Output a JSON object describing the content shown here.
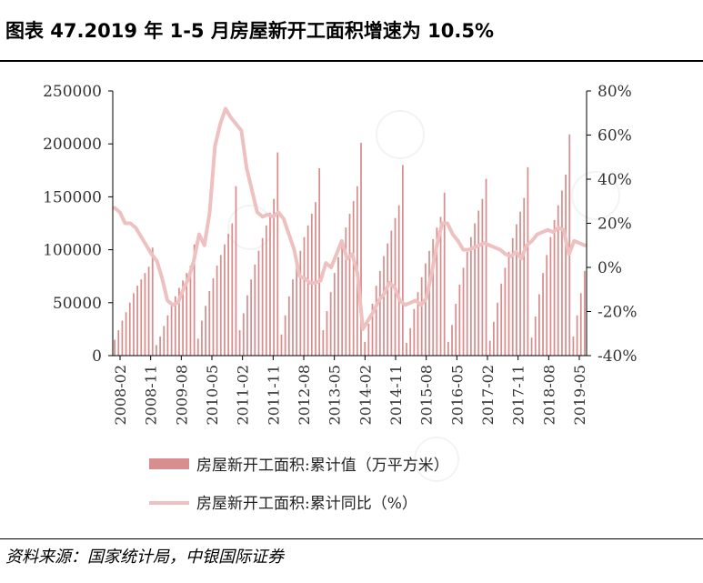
{
  "title": "图表 47.2019 年 1-5 月房屋新开工面积增速为 10.5%",
  "source": "资料来源：国家统计局，中银国际证券",
  "colors": {
    "bar": "#d88e8e",
    "line": "#eec0c0",
    "axis": "#000000"
  },
  "chart_data": {
    "type": "bar+line",
    "x_tick_labels": [
      "2008-02",
      "2008-11",
      "2009-08",
      "2010-05",
      "2011-02",
      "2011-11",
      "2012-08",
      "2013-05",
      "2014-02",
      "2014-11",
      "2015-08",
      "2016-05",
      "2017-02",
      "2017-11",
      "2018-08",
      "2019-05"
    ],
    "y_left_ticks": [
      "250000",
      "200000",
      "150000",
      "100000",
      "50000",
      "0"
    ],
    "y_right_ticks": [
      "80%",
      "60%",
      "40%",
      "20%",
      "0%",
      "-20%",
      "-40%"
    ],
    "ylim_left": [
      0,
      250000
    ],
    "ylim_right": [
      -40,
      80
    ],
    "grid": false,
    "legend_position": "bottom",
    "series": [
      {
        "name": "房屋新开工面积:累计值（万平方米）",
        "axis": "left",
        "kind": "bar",
        "values": [
          [
            15000,
            24000,
            33000,
            41000,
            50000,
            59000,
            66000,
            72000,
            78000,
            84000,
            102000
          ],
          [
            10000,
            18000,
            28000,
            38000,
            48000,
            56000,
            64000,
            71000,
            78000,
            85000,
            105000
          ],
          [
            16000,
            33000,
            47000,
            61000,
            73000,
            85000,
            95000,
            105000,
            115000,
            125000,
            160000
          ],
          [
            24000,
            40000,
            57000,
            72000,
            86000,
            99000,
            111000,
            123000,
            135000,
            148000,
            192000
          ],
          [
            20000,
            38000,
            56000,
            72000,
            85000,
            99000,
            112000,
            123000,
            134000,
            145000,
            177000
          ],
          [
            24000,
            42000,
            60000,
            78000,
            93000,
            108000,
            121000,
            134000,
            146000,
            160000,
            201000
          ],
          [
            13000,
            30000,
            49000,
            66000,
            80000,
            94000,
            106000,
            118000,
            130000,
            142000,
            180000
          ],
          [
            12000,
            26000,
            44000,
            60000,
            74000,
            87000,
            99000,
            110000,
            121000,
            131000,
            154000
          ],
          [
            13000,
            29000,
            49000,
            67000,
            83000,
            98000,
            112000,
            125000,
            137000,
            148000,
            167000
          ],
          [
            14000,
            32000,
            50000,
            68000,
            83000,
            98000,
            111000,
            124000,
            136000,
            149000,
            178000
          ],
          [
            17000,
            37000,
            58000,
            78000,
            95000,
            112000,
            128000,
            142000,
            156000,
            171000,
            209000
          ],
          [
            18000,
            38000,
            59000,
            80000
          ]
        ]
      },
      {
        "name": "房屋新开工面积:累计同比（%）",
        "axis": "right",
        "kind": "line",
        "values": [
          27,
          25,
          20,
          20,
          18,
          14,
          10,
          6,
          3,
          -5,
          -15,
          -17,
          -16,
          -10,
          -5,
          3,
          15,
          10,
          25,
          55,
          65,
          72,
          68,
          65,
          62,
          45,
          35,
          25,
          23,
          24,
          23,
          25,
          22,
          15,
          8,
          -4,
          -5,
          -7,
          -7,
          -6,
          2,
          0,
          6,
          12,
          4,
          6,
          -3,
          -28,
          -24,
          -20,
          -15,
          -12,
          -7,
          -9,
          -15,
          -17,
          -16,
          -15,
          -17,
          -14,
          -3,
          10,
          20,
          20,
          15,
          12,
          8,
          8,
          9,
          10,
          11,
          10,
          9,
          8,
          6,
          5,
          7,
          4,
          10,
          12,
          15,
          16,
          17,
          16,
          18,
          17,
          6,
          12,
          11,
          10
        ]
      }
    ]
  }
}
